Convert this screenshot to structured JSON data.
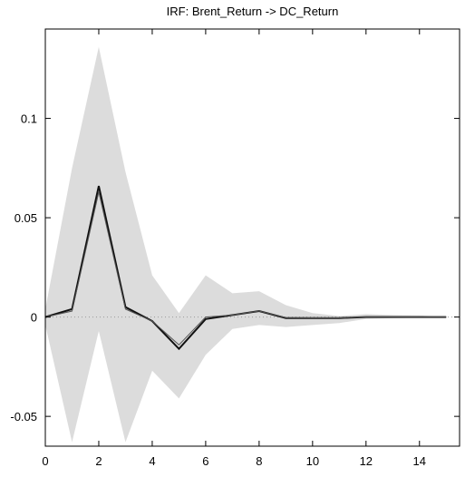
{
  "chart_data": {
    "type": "line",
    "title": "IRF: Brent_Return -> DC_Return",
    "xlabel": "",
    "ylabel": "",
    "xlim": [
      0,
      15.5
    ],
    "ylim": [
      -0.065,
      0.145
    ],
    "x_ticks": [
      0,
      2,
      4,
      6,
      8,
      10,
      12,
      14
    ],
    "y_ticks": [
      -0.05,
      0,
      0.05,
      0.1
    ],
    "x_tick_labels": [
      "0",
      "2",
      "4",
      "6",
      "8",
      "10",
      "12",
      "14"
    ],
    "y_tick_labels": [
      "-0.05",
      "0",
      "0.05",
      "0.1"
    ],
    "x": [
      0,
      1,
      2,
      3,
      4,
      5,
      6,
      7,
      8,
      9,
      10,
      11,
      12,
      13,
      14,
      15
    ],
    "series": [
      {
        "role": "point_estimate",
        "values": [
          0,
          0.004,
          0.066,
          0.005,
          -0.002,
          -0.016,
          -0.001,
          0.001,
          0.003,
          -0.0005,
          -0.0005,
          -0.0005,
          0,
          0,
          0,
          0
        ],
        "color": "#111111"
      },
      {
        "role": "bootstrap_median",
        "values": [
          0,
          0.003,
          0.063,
          0.004,
          -0.002,
          -0.014,
          0,
          0.001,
          0.003,
          -0.0003,
          -0.0004,
          -0.0004,
          0,
          0,
          0,
          0
        ],
        "color": "#555555"
      }
    ],
    "confidence_band": {
      "upper": [
        0.004,
        0.075,
        0.136,
        0.073,
        0.021,
        0.002,
        0.021,
        0.012,
        0.013,
        0.006,
        0.002,
        0.0005,
        0.0015,
        0.001,
        0.0008,
        0
      ],
      "lower": [
        -0.004,
        -0.063,
        -0.007,
        -0.063,
        -0.027,
        -0.041,
        -0.019,
        -0.006,
        -0.004,
        -0.005,
        -0.004,
        -0.003,
        -0.001,
        -0.0005,
        -0.0003,
        0
      ],
      "color": "#dcdcdc"
    },
    "zero_line": true,
    "grid": false,
    "legend": "none"
  }
}
